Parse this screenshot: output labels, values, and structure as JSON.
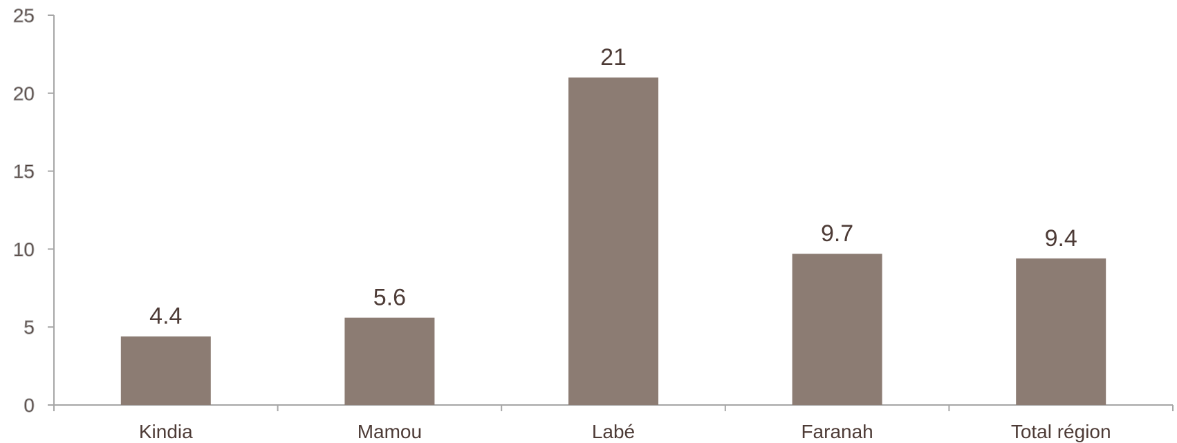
{
  "chart_data": {
    "type": "bar",
    "categories": [
      "Kindia",
      "Mamou",
      "Labé",
      "Faranah",
      "Total région"
    ],
    "values": [
      4.4,
      5.6,
      21,
      9.7,
      9.4
    ],
    "value_labels": [
      "4.4",
      "5.6",
      "21",
      "9.7",
      "9.4"
    ],
    "y_ticks": [
      "0",
      "5",
      "10",
      "15",
      "20",
      "25"
    ],
    "ylim": [
      0,
      25
    ],
    "grid": false,
    "legend": "none",
    "colors": {
      "bar": "#8c7c73",
      "text": "#4d3b36",
      "axis": "#a6a6a6"
    }
  }
}
